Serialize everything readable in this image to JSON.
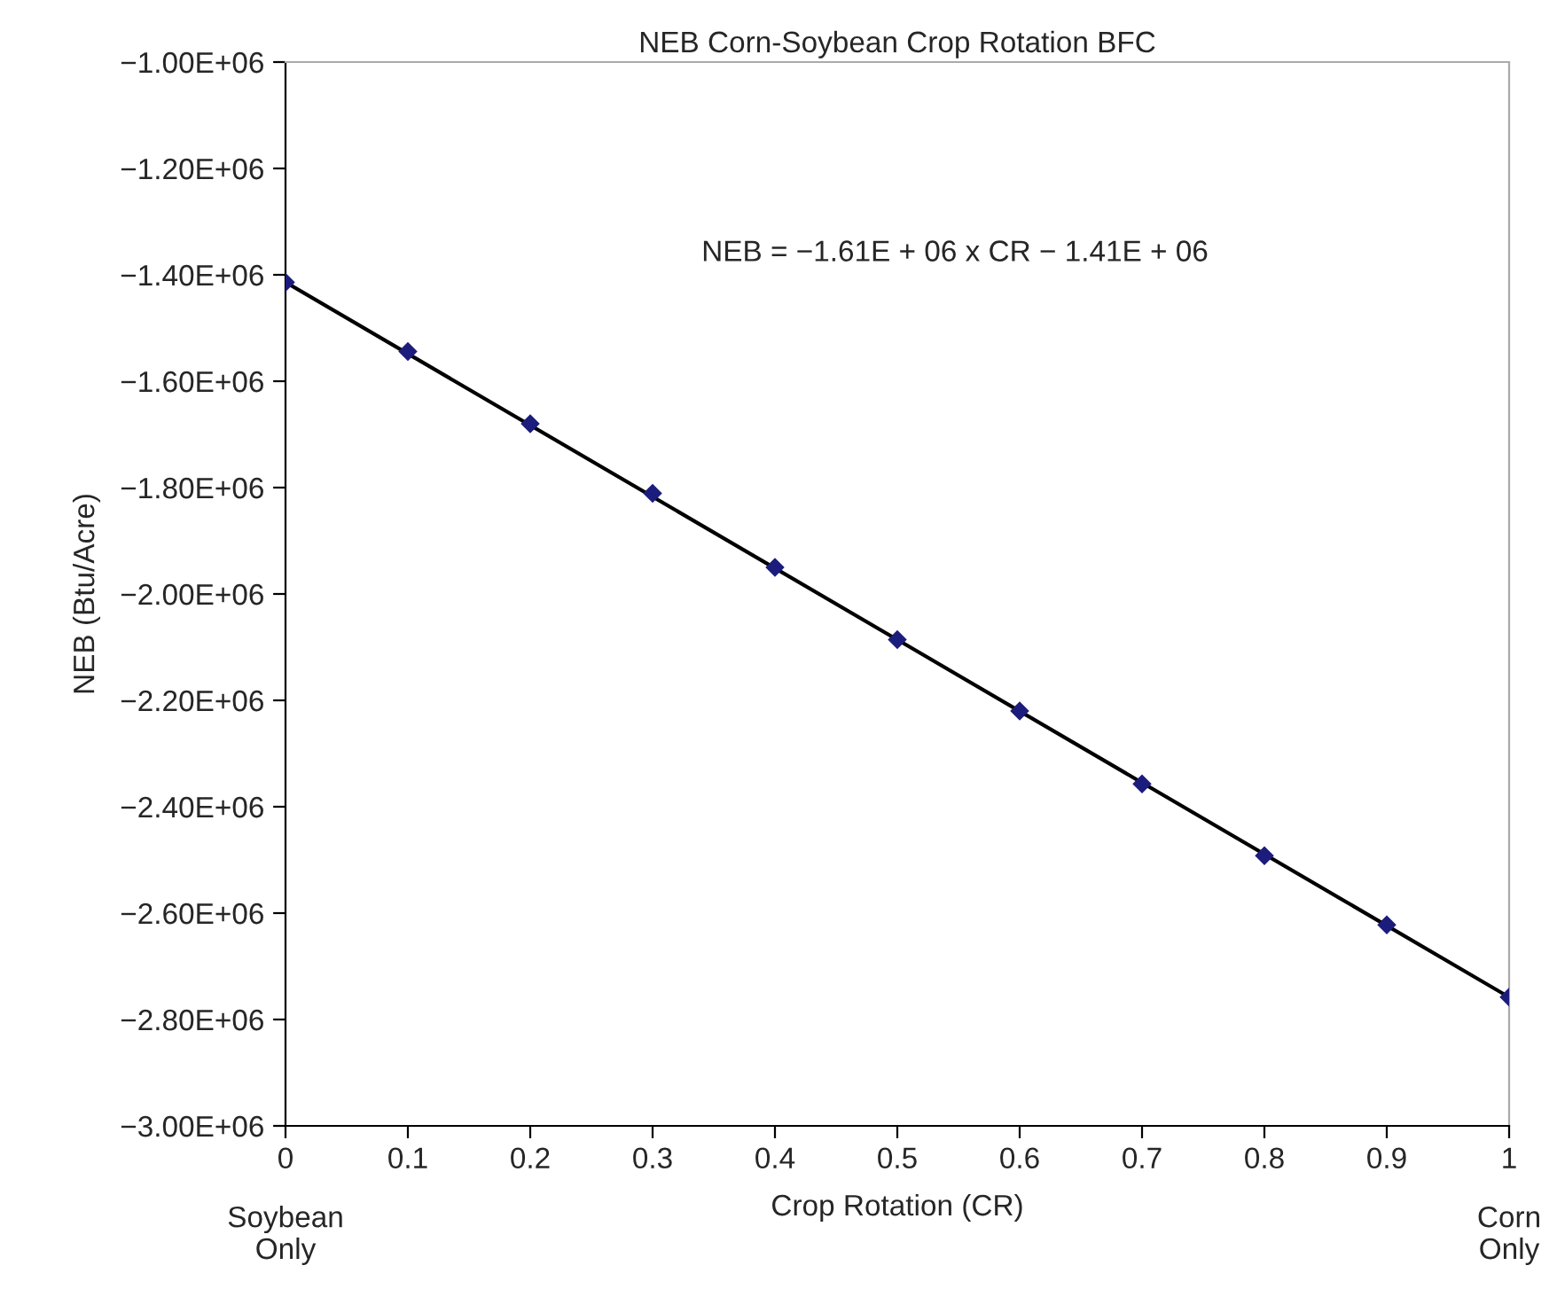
{
  "chart_data": {
    "type": "scatter",
    "title": "NEB Corn-Soybean Crop Rotation BFC",
    "xlabel": "Crop Rotation (CR)",
    "ylabel": "NEB (Btu/Acre)",
    "x": [
      0,
      0.1,
      0.2,
      0.3,
      0.4,
      0.5,
      0.6,
      0.7,
      0.8,
      0.9,
      1
    ],
    "series": [
      {
        "color": "#1c1c7c",
        "marker": "diamond",
        "values": [
          -1414000,
          -1544000,
          -1680000,
          -1811000,
          -1950000,
          -2086000,
          -2220000,
          -2357000,
          -2492000,
          -2622000,
          -2758000
        ]
      },
      {
        "type": "line",
        "color": "#000000",
        "x": [
          0,
          1
        ],
        "values": [
          -1414000,
          -2758000
        ],
        "line_style": "solid"
      }
    ],
    "xlim": [
      0,
      1
    ],
    "xticks": [
      0,
      0.1,
      0.2,
      0.3,
      0.4,
      0.5,
      0.6,
      0.7,
      0.8,
      0.9,
      1
    ],
    "ylim": [
      -3000000,
      -1000000
    ],
    "yticks": [
      {
        "value": -3000000,
        "label": "−3.00E+06"
      },
      {
        "value": -2800000,
        "label": "−2.80E+06"
      },
      {
        "value": -2600000,
        "label": "−2.60E+06"
      },
      {
        "value": -2400000,
        "label": "−2.40E+06"
      },
      {
        "value": -2200000,
        "label": "−2.20E+06"
      },
      {
        "value": -2000000,
        "label": "−2.00E+06"
      },
      {
        "value": -1800000,
        "label": "−1.80E+06"
      },
      {
        "value": -1600000,
        "label": "−1.60E+06"
      },
      {
        "value": -1400000,
        "label": "−1.40E+06"
      },
      {
        "value": -1200000,
        "label": "−1.20E+06"
      },
      {
        "value": -1000000,
        "label": "−1.00E+06"
      }
    ],
    "grid": false,
    "legend": false,
    "annotations": [
      "NEB = −1.61E + 06 x CR − 1.41E + 06",
      "Soybean\nOnly",
      "Corn\nOnly"
    ]
  }
}
